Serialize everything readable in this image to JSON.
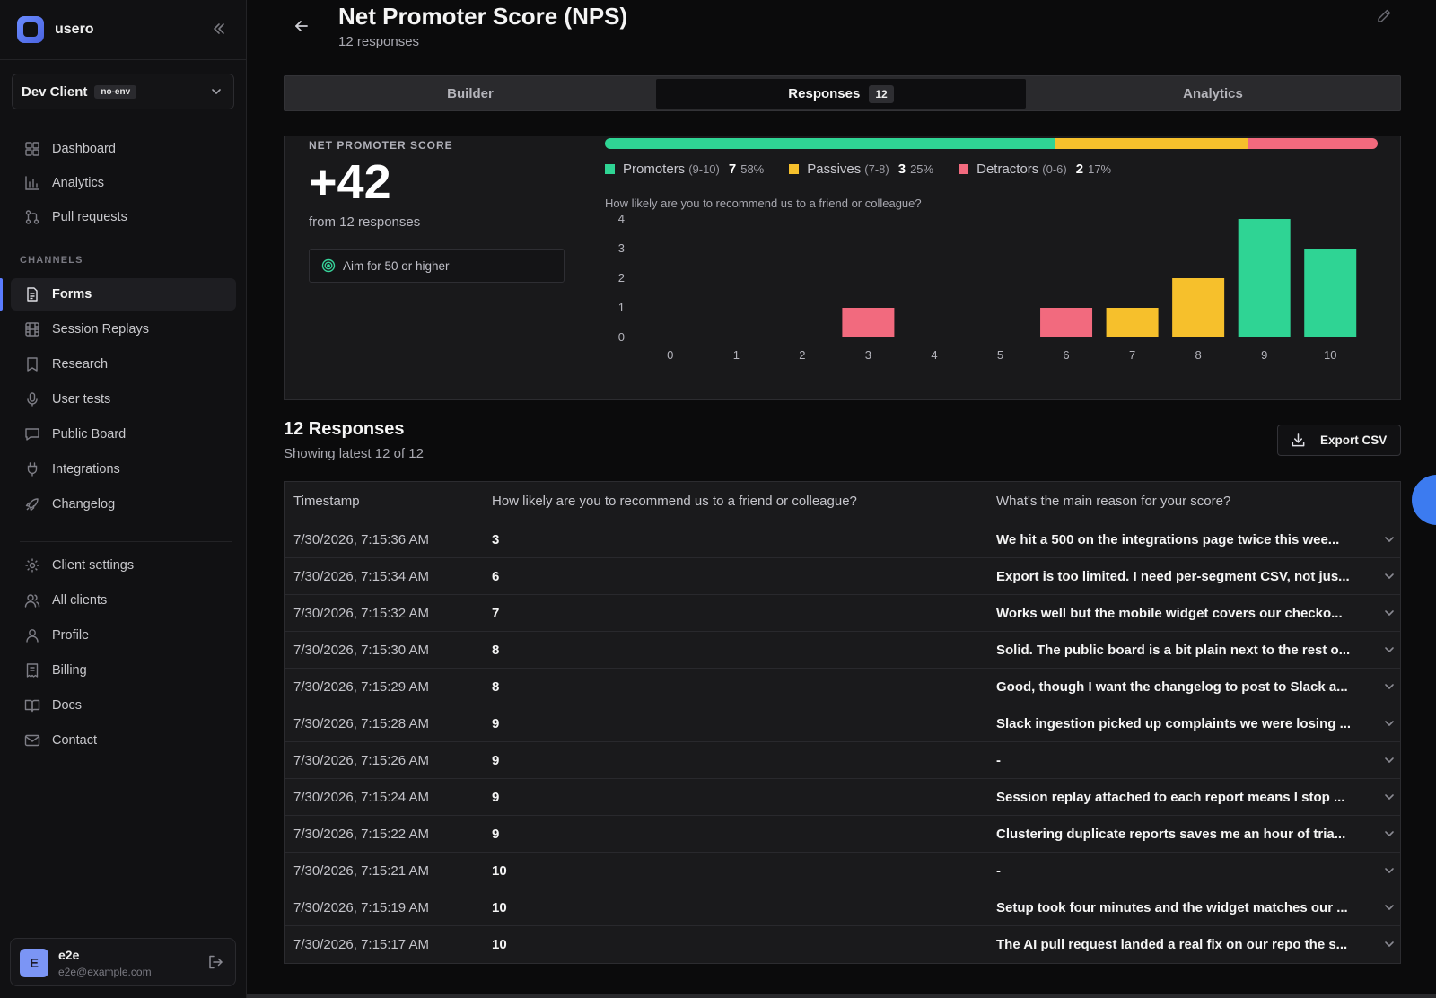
{
  "app": {
    "name": "usero"
  },
  "client": {
    "name": "Dev Client",
    "env": "no-env"
  },
  "nav": {
    "top": [
      {
        "label": "Dashboard",
        "icon": "dashboard-icon"
      },
      {
        "label": "Analytics",
        "icon": "bar-chart-icon"
      },
      {
        "label": "Pull requests",
        "icon": "pull-request-icon"
      }
    ],
    "section_label": "CHANNELS",
    "channels": [
      {
        "label": "Forms",
        "icon": "form-icon",
        "active": true
      },
      {
        "label": "Session Replays",
        "icon": "film-icon"
      },
      {
        "label": "Research",
        "icon": "bookmark-icon"
      },
      {
        "label": "User tests",
        "icon": "microphone-icon"
      },
      {
        "label": "Public Board",
        "icon": "message-icon"
      },
      {
        "label": "Integrations",
        "icon": "plug-icon"
      },
      {
        "label": "Changelog",
        "icon": "rocket-icon"
      }
    ],
    "bottom": [
      {
        "label": "Client settings",
        "icon": "gear-icon"
      },
      {
        "label": "All clients",
        "icon": "users-icon"
      },
      {
        "label": "Profile",
        "icon": "user-icon"
      },
      {
        "label": "Billing",
        "icon": "receipt-icon"
      },
      {
        "label": "Docs",
        "icon": "book-icon"
      },
      {
        "label": "Contact",
        "icon": "mail-icon"
      }
    ]
  },
  "user": {
    "initial": "E",
    "name": "e2e",
    "email": "e2e@example.com"
  },
  "page": {
    "title": "Net Promoter Score (NPS)",
    "subtitle": "12 responses"
  },
  "tabs": [
    {
      "label": "Builder"
    },
    {
      "label": "Responses",
      "count": "12",
      "active": true
    },
    {
      "label": "Analytics"
    }
  ],
  "nps": {
    "label": "NET PROMOTER SCORE",
    "score": "+42",
    "from": "from 12 responses",
    "target": "Aim for 50 or higher",
    "legend": [
      {
        "label": "Promoters",
        "range": "(9-10)",
        "count": "7",
        "pct": "58%",
        "color": "#2fd494"
      },
      {
        "label": "Passives",
        "range": "(7-8)",
        "count": "3",
        "pct": "25%",
        "color": "#f6c02c"
      },
      {
        "label": "Detractors",
        "range": "(0-6)",
        "count": "2",
        "pct": "17%",
        "color": "#f26a7e"
      }
    ],
    "distribution": [
      0.583,
      0.25,
      0.167
    ],
    "question": "How likely are you to recommend us to a friend or colleague?"
  },
  "chart_data": {
    "type": "bar",
    "categories": [
      "0",
      "1",
      "2",
      "3",
      "4",
      "5",
      "6",
      "7",
      "8",
      "9",
      "10"
    ],
    "values": [
      0,
      0,
      0,
      1,
      0,
      0,
      1,
      1,
      2,
      4,
      3
    ],
    "colors": [
      "#f26a7e",
      "#f26a7e",
      "#f26a7e",
      "#f26a7e",
      "#f26a7e",
      "#f26a7e",
      "#f26a7e",
      "#f6c02c",
      "#f6c02c",
      "#2fd494",
      "#2fd494"
    ],
    "y_ticks": [
      "0",
      "1",
      "2",
      "3",
      "4"
    ],
    "ylim": [
      0,
      4
    ],
    "grid": false
  },
  "responses": {
    "title": "12 Responses",
    "subtitle": "Showing latest 12 of 12",
    "export_label": "Export CSV",
    "columns": [
      "Timestamp",
      "How likely are you to recommend us to a friend or colleague?",
      "What's the main reason for your score?"
    ],
    "rows": [
      {
        "ts": "7/30/2026, 7:15:36 AM",
        "score": "3",
        "reason": "We hit a 500 on the integrations page twice this wee..."
      },
      {
        "ts": "7/30/2026, 7:15:34 AM",
        "score": "6",
        "reason": "Export is too limited. I need per-segment CSV, not jus..."
      },
      {
        "ts": "7/30/2026, 7:15:32 AM",
        "score": "7",
        "reason": "Works well but the mobile widget covers our checko..."
      },
      {
        "ts": "7/30/2026, 7:15:30 AM",
        "score": "8",
        "reason": "Solid. The public board is a bit plain next to the rest o..."
      },
      {
        "ts": "7/30/2026, 7:15:29 AM",
        "score": "8",
        "reason": "Good, though I want the changelog to post to Slack a..."
      },
      {
        "ts": "7/30/2026, 7:15:28 AM",
        "score": "9",
        "reason": "Slack ingestion picked up complaints we were losing ..."
      },
      {
        "ts": "7/30/2026, 7:15:26 AM",
        "score": "9",
        "reason": "-"
      },
      {
        "ts": "7/30/2026, 7:15:24 AM",
        "score": "9",
        "reason": "Session replay attached to each report means I stop ..."
      },
      {
        "ts": "7/30/2026, 7:15:22 AM",
        "score": "9",
        "reason": "Clustering duplicate reports saves me an hour of tria..."
      },
      {
        "ts": "7/30/2026, 7:15:21 AM",
        "score": "10",
        "reason": "-"
      },
      {
        "ts": "7/30/2026, 7:15:19 AM",
        "score": "10",
        "reason": "Setup took four minutes and the widget matches our ..."
      },
      {
        "ts": "7/30/2026, 7:15:17 AM",
        "score": "10",
        "reason": "The AI pull request landed a real fix on our repo the s..."
      }
    ]
  }
}
